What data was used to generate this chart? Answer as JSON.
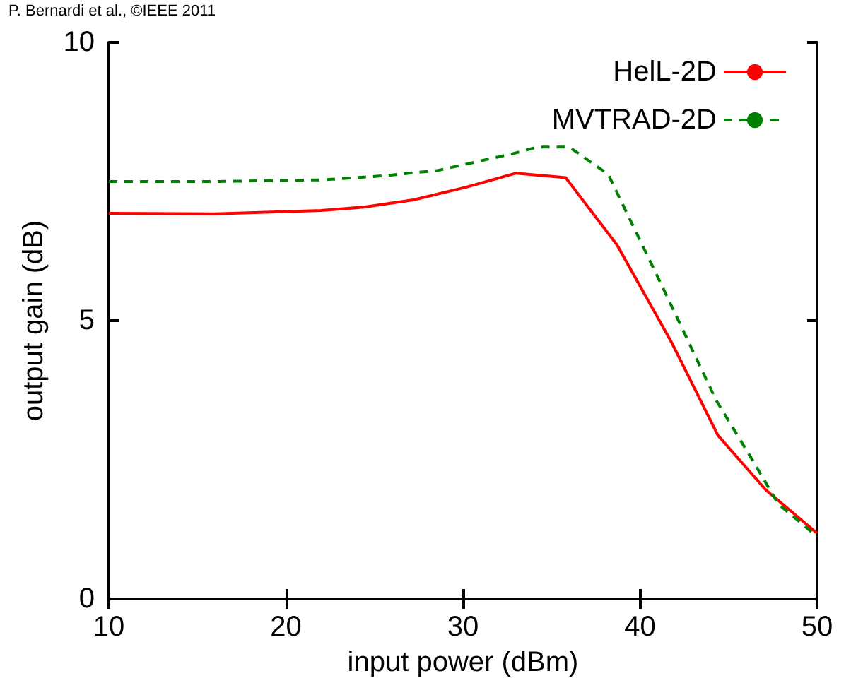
{
  "chart_data": {
    "type": "line",
    "xlabel": "input power (dBm)",
    "ylabel": "output gain (dB)",
    "annotations": [
      "P. Bernardi et al., ©IEEE 2011"
    ],
    "xlim": [
      10,
      50
    ],
    "xticks": [
      10,
      20,
      30,
      40,
      50
    ],
    "ylim": [
      0,
      10
    ],
    "yticks": [
      0,
      5,
      10
    ],
    "grid": false,
    "legend": "top right",
    "marker": "none",
    "series": [
      {
        "name": "HelL-2D",
        "color": "#ff0000",
        "line_style": "solid",
        "x": [
          10,
          16,
          22,
          24.4,
          27.2,
          30.2,
          33,
          35.8,
          38.7,
          41.8,
          44.4,
          47.1,
          50
        ],
        "values": [
          6.93,
          6.92,
          6.98,
          7.04,
          7.17,
          7.4,
          7.65,
          7.57,
          6.36,
          4.6,
          2.94,
          1.96,
          1.18
        ]
      },
      {
        "name": "MVTRAD-2D",
        "color": "#008000",
        "line_style": "dashed",
        "x": [
          10,
          16,
          22,
          25.4,
          28.6,
          32.8,
          34.2,
          36,
          38.2,
          41.4,
          44.3,
          46.4,
          47.8,
          50
        ],
        "values": [
          7.5,
          7.5,
          7.53,
          7.6,
          7.7,
          8.0,
          8.12,
          8.12,
          7.63,
          5.52,
          3.57,
          2.47,
          1.71,
          1.12
        ]
      }
    ]
  }
}
